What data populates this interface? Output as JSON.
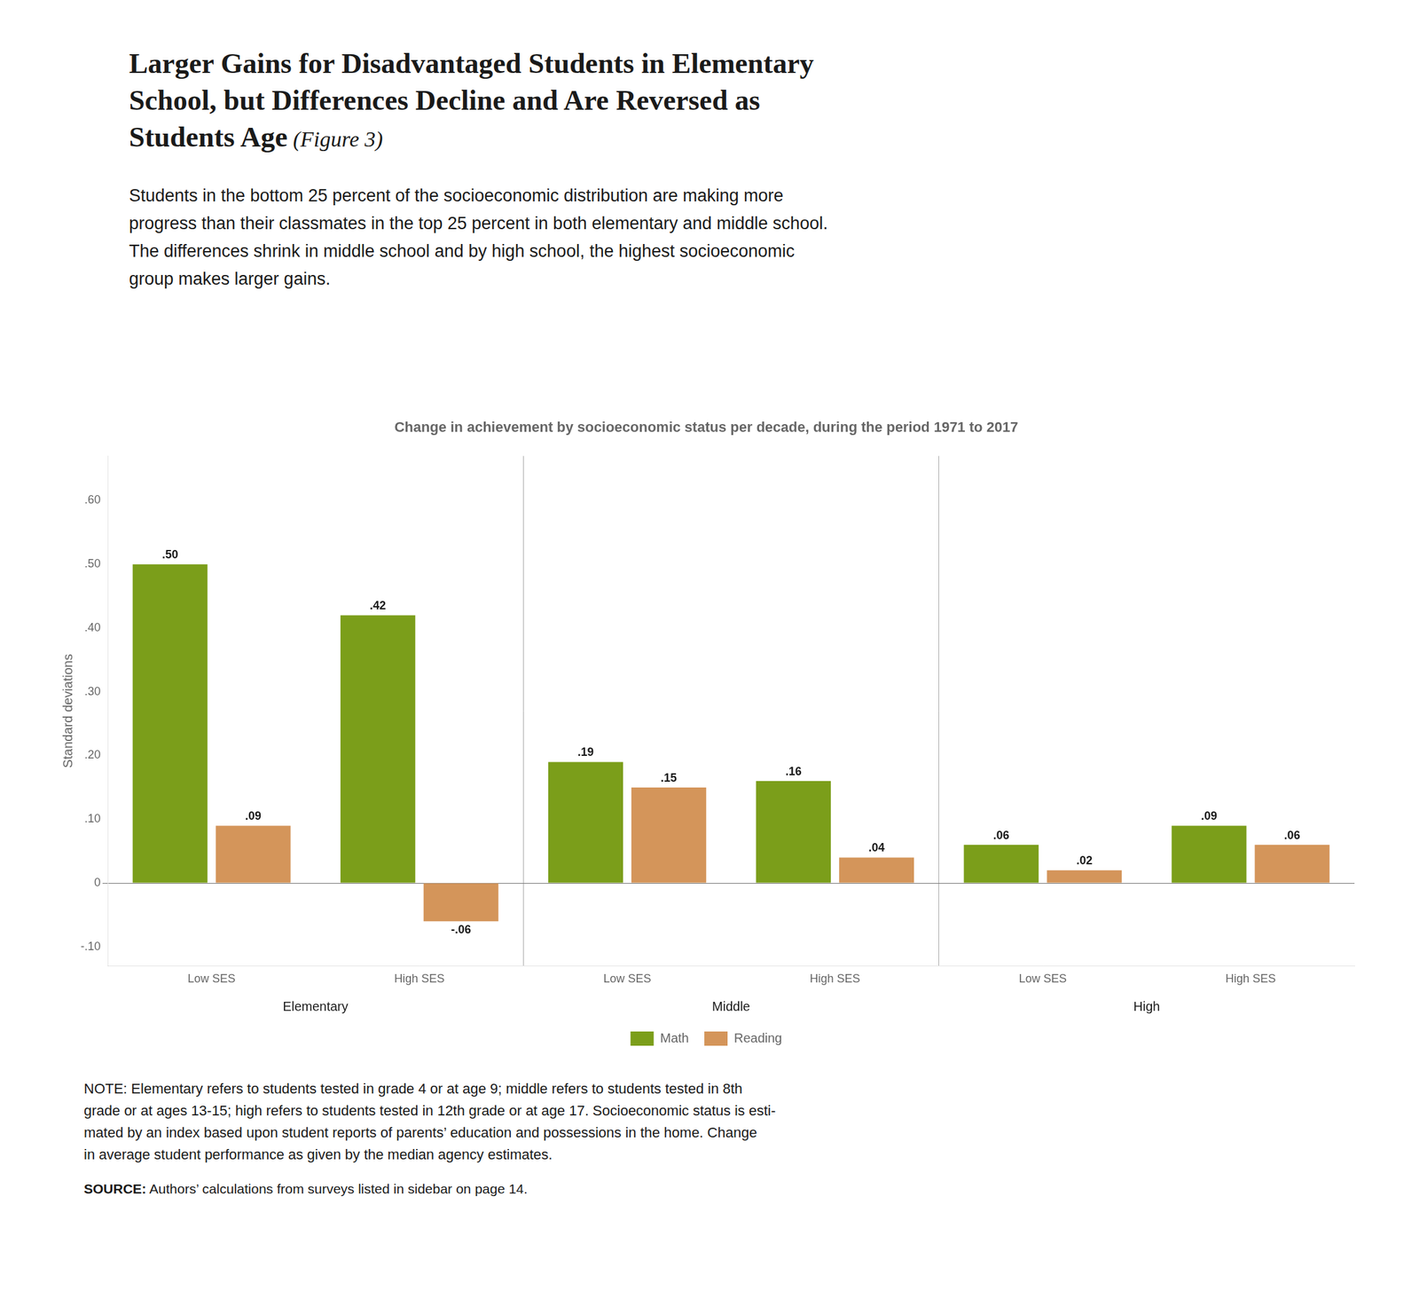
{
  "chart_data": {
    "type": "bar",
    "title": [
      "Larger Gains for Disadvantaged Students in Elementary",
      "School, but Differences Decline and Are Reversed as",
      "Students Age"
    ],
    "title_suffix": " (Figure 3)",
    "subtitle": [
      "Students in the bottom 25 percent of the socioeconomic distribution are making more",
      "progress than their classmates in the top 25 percent in both elementary and middle school.",
      "The differences shrink in middle school and by high school, the highest socioeconomic",
      "group makes larger gains."
    ],
    "chart_title": "Change in achievement by socioeconomic status per decade, during the period 1971 to 2017",
    "ylabel": "Standard deviations",
    "categories": [
      "Low SES",
      "High SES",
      "Low SES",
      "High SES",
      "Low SES",
      "High SES"
    ],
    "groups": [
      "Elementary",
      "Middle",
      "High"
    ],
    "series": [
      {
        "name": "Math",
        "color": "#7B9E1A",
        "values": [
          0.5,
          0.42,
          0.19,
          0.16,
          0.06,
          0.09
        ],
        "value_labels": [
          ".50",
          ".42",
          ".19",
          ".16",
          ".06",
          ".09"
        ]
      },
      {
        "name": "Reading",
        "color": "#D4955A",
        "values": [
          0.09,
          -0.06,
          0.15,
          0.04,
          0.02,
          0.06
        ],
        "value_labels": [
          ".09",
          "-.06",
          ".15",
          ".04",
          ".02",
          ".06"
        ]
      }
    ],
    "ylim": [
      -0.13,
      0.67
    ],
    "yticks": [
      {
        "value": -0.1,
        "label": "-.10"
      },
      0,
      {
        "value": 0.1,
        "label": ".10"
      },
      {
        "value": 0.2,
        "label": ".20"
      },
      {
        "value": 0.3,
        "label": ".30"
      },
      {
        "value": 0.4,
        "label": ".40"
      },
      {
        "value": 0.5,
        "label": ".50"
      },
      {
        "value": 0.6,
        "label": ".60"
      }
    ],
    "grid": false,
    "legend": "bottom",
    "data_labels": true,
    "note": "NOTE: Elementary refers to students tested in grade 4 or at age 9; middle refers to students tested in 8th\ngrade or at ages 13-15; high refers to students tested in 12th grade or at age 17. Socioeconomic status is esti-\nmated by an index based upon student reports of parents’ education and possessions in the home. Change\nin average student performance as given by the median agency estimates.",
    "source_label": "SOURCE:",
    "source": " Authors’ calculations from surveys listed in sidebar on page 14."
  }
}
